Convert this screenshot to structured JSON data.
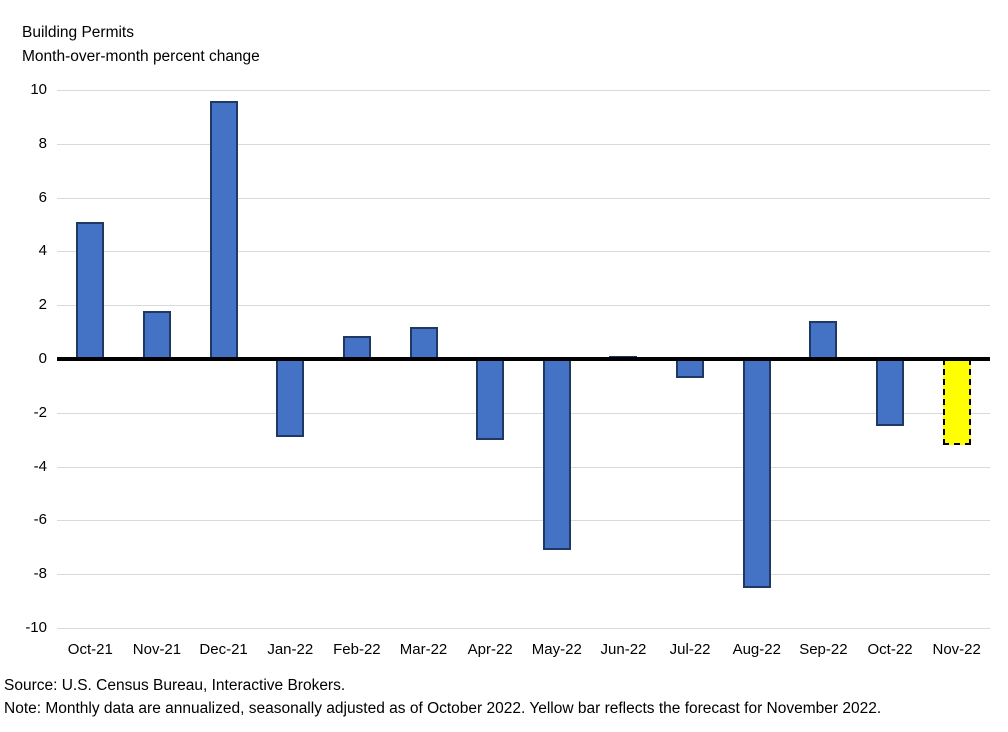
{
  "chart_data": {
    "type": "bar",
    "title": "Building Permits",
    "subtitle": "Month-over-month percent change",
    "categories": [
      "Oct-21",
      "Nov-21",
      "Dec-21",
      "Jan-22",
      "Feb-22",
      "Mar-22",
      "Apr-22",
      "May-22",
      "Jun-22",
      "Jul-22",
      "Aug-22",
      "Sep-22",
      "Oct-22",
      "Nov-22"
    ],
    "values": [
      5.1,
      1.8,
      9.6,
      -2.9,
      0.85,
      1.2,
      -3.0,
      -7.1,
      0.1,
      -0.7,
      -8.5,
      1.4,
      -2.5,
      -3.2
    ],
    "ylim": [
      -10,
      10
    ],
    "ytick_step": 2,
    "grid": true,
    "legend": "none",
    "bar_color": "#4472C4",
    "bar_border_color": "#1F3864",
    "forecast_index": 13,
    "forecast_fill_color": "#FFFF00",
    "forecast_border_color": "#000000",
    "forecast_border_style": "dashed",
    "zero_axis_color": "#000000",
    "gridline_color": "#D9D9D9",
    "source": "Source: U.S. Census Bureau, Interactive Brokers.",
    "note": "Note: Monthly data are annualized, seasonally adjusted as of October 2022. Yellow bar reflects the forecast for November 2022."
  }
}
